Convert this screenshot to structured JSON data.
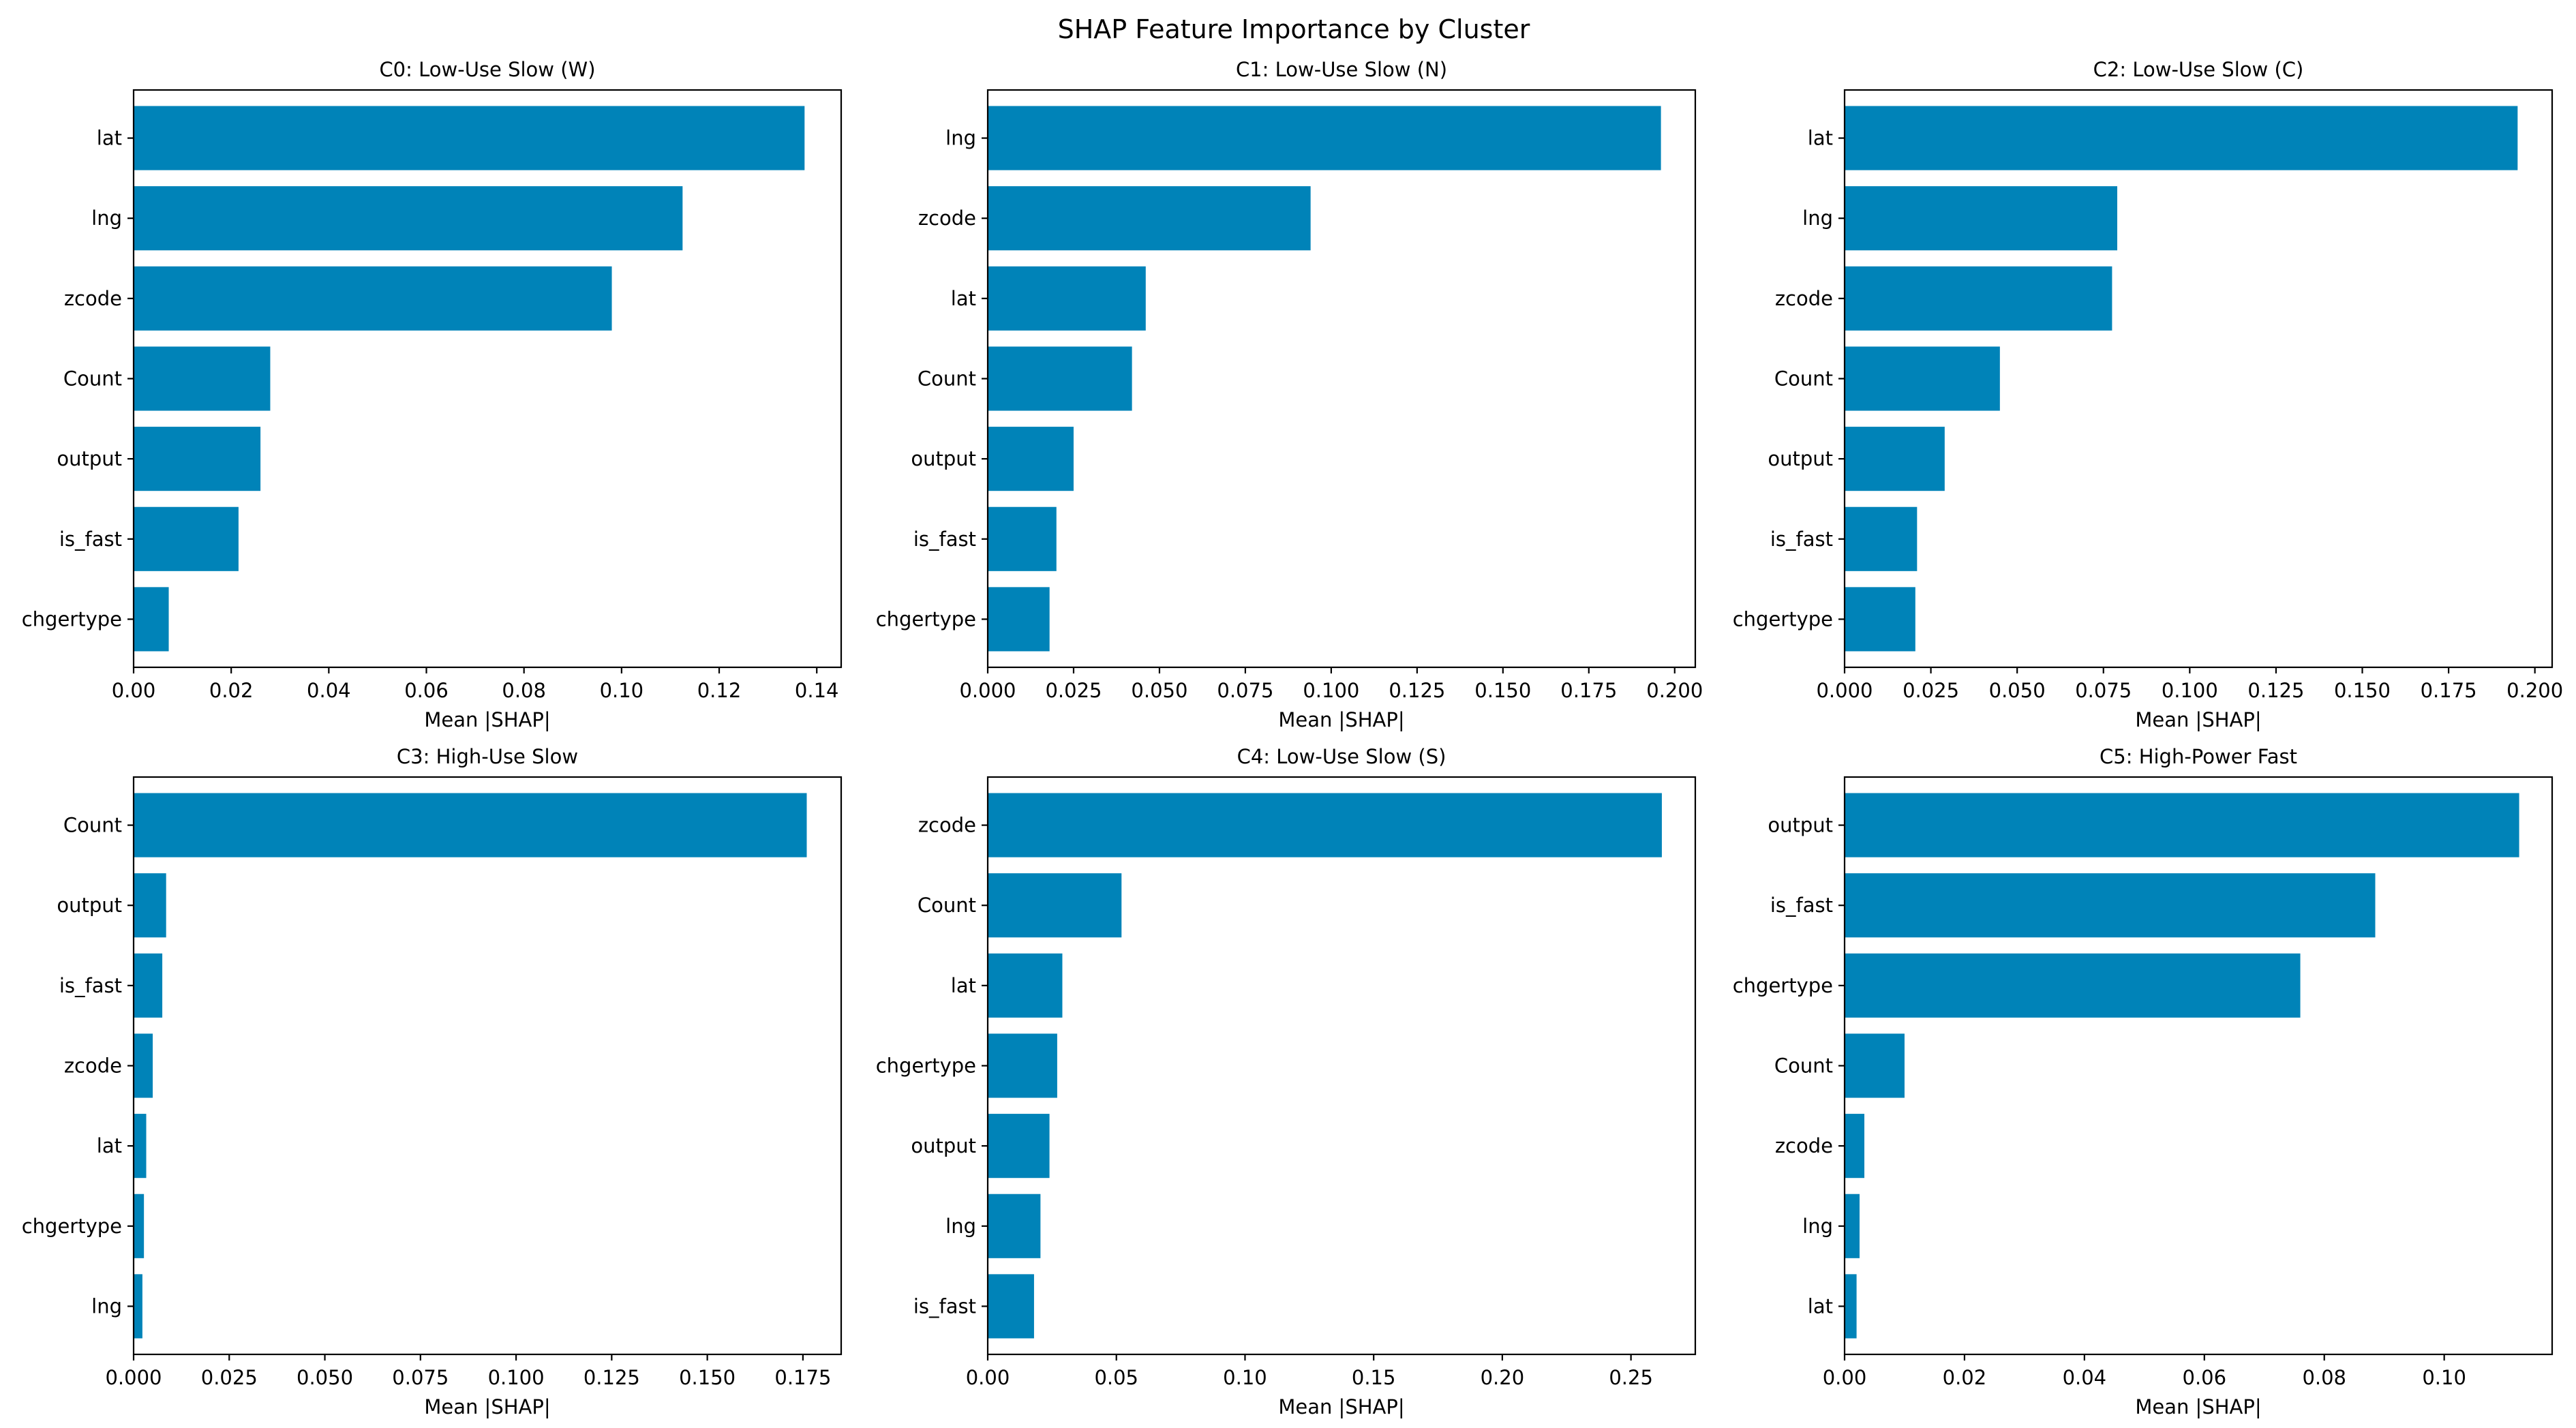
{
  "figure_title": "SHAP Feature Importance by Cluster",
  "colors": {
    "bar": "#0083B8",
    "axes": "#000000",
    "background": "#FFFFFF"
  },
  "chart_data": [
    {
      "type": "bar",
      "orientation": "horizontal",
      "title": "C0: Low-Use Slow (W)",
      "xlabel": "Mean |SHAP|",
      "ylabel": "",
      "categories": [
        "lat",
        "lng",
        "zcode",
        "Count",
        "output",
        "is_fast",
        "chgertype"
      ],
      "values": [
        0.1375,
        0.1125,
        0.098,
        0.028,
        0.026,
        0.0215,
        0.0072
      ],
      "xlim": [
        0,
        0.145
      ],
      "xticks": [
        0.0,
        0.02,
        0.04,
        0.06,
        0.08,
        0.1,
        0.12,
        0.14
      ],
      "xtick_labels": [
        "0.00",
        "0.02",
        "0.04",
        "0.06",
        "0.08",
        "0.10",
        "0.12",
        "0.14"
      ],
      "grid": false
    },
    {
      "type": "bar",
      "orientation": "horizontal",
      "title": "C1: Low-Use Slow (N)",
      "xlabel": "Mean |SHAP|",
      "ylabel": "",
      "categories": [
        "lng",
        "zcode",
        "lat",
        "Count",
        "output",
        "is_fast",
        "chgertype"
      ],
      "values": [
        0.196,
        0.094,
        0.046,
        0.042,
        0.025,
        0.02,
        0.018
      ],
      "xlim": [
        0,
        0.206
      ],
      "xticks": [
        0.0,
        0.025,
        0.05,
        0.075,
        0.1,
        0.125,
        0.15,
        0.175,
        0.2
      ],
      "xtick_labels": [
        "0.000",
        "0.025",
        "0.050",
        "0.075",
        "0.100",
        "0.125",
        "0.150",
        "0.175",
        "0.200"
      ],
      "grid": false
    },
    {
      "type": "bar",
      "orientation": "horizontal",
      "title": "C2: Low-Use Slow (C)",
      "xlabel": "Mean |SHAP|",
      "ylabel": "",
      "categories": [
        "lat",
        "lng",
        "zcode",
        "Count",
        "output",
        "is_fast",
        "chgertype"
      ],
      "values": [
        0.195,
        0.079,
        0.0775,
        0.045,
        0.029,
        0.021,
        0.0205
      ],
      "xlim": [
        0,
        0.205
      ],
      "xticks": [
        0.0,
        0.025,
        0.05,
        0.075,
        0.1,
        0.125,
        0.15,
        0.175,
        0.2
      ],
      "xtick_labels": [
        "0.000",
        "0.025",
        "0.050",
        "0.075",
        "0.100",
        "0.125",
        "0.150",
        "0.175",
        "0.200"
      ],
      "grid": false
    },
    {
      "type": "bar",
      "orientation": "horizontal",
      "title": "C3: High-Use Slow",
      "xlabel": "Mean |SHAP|",
      "ylabel": "",
      "categories": [
        "Count",
        "output",
        "is_fast",
        "zcode",
        "lat",
        "chgertype",
        "lng"
      ],
      "values": [
        0.176,
        0.0085,
        0.0075,
        0.005,
        0.0033,
        0.0027,
        0.0023
      ],
      "xlim": [
        0,
        0.185
      ],
      "xticks": [
        0.0,
        0.025,
        0.05,
        0.075,
        0.1,
        0.125,
        0.15,
        0.175
      ],
      "xtick_labels": [
        "0.000",
        "0.025",
        "0.050",
        "0.075",
        "0.100",
        "0.125",
        "0.150",
        "0.175"
      ],
      "grid": false
    },
    {
      "type": "bar",
      "orientation": "horizontal",
      "title": "C4: Low-Use Slow (S)",
      "xlabel": "Mean |SHAP|",
      "ylabel": "",
      "categories": [
        "zcode",
        "Count",
        "lat",
        "chgertype",
        "output",
        "lng",
        "is_fast"
      ],
      "values": [
        0.262,
        0.052,
        0.029,
        0.027,
        0.024,
        0.0205,
        0.018
      ],
      "xlim": [
        0,
        0.275
      ],
      "xticks": [
        0.0,
        0.05,
        0.1,
        0.15,
        0.2,
        0.25
      ],
      "xtick_labels": [
        "0.00",
        "0.05",
        "0.10",
        "0.15",
        "0.20",
        "0.25"
      ],
      "grid": false
    },
    {
      "type": "bar",
      "orientation": "horizontal",
      "title": "C5: High-Power Fast",
      "xlabel": "Mean |SHAP|",
      "ylabel": "",
      "categories": [
        "output",
        "is_fast",
        "chgertype",
        "Count",
        "zcode",
        "lng",
        "lat"
      ],
      "values": [
        0.1125,
        0.0885,
        0.076,
        0.01,
        0.0033,
        0.0025,
        0.002
      ],
      "xlim": [
        0,
        0.118
      ],
      "xticks": [
        0.0,
        0.02,
        0.04,
        0.06,
        0.08,
        0.1
      ],
      "xtick_labels": [
        "0.00",
        "0.02",
        "0.04",
        "0.06",
        "0.08",
        "0.10"
      ],
      "grid": false
    }
  ]
}
